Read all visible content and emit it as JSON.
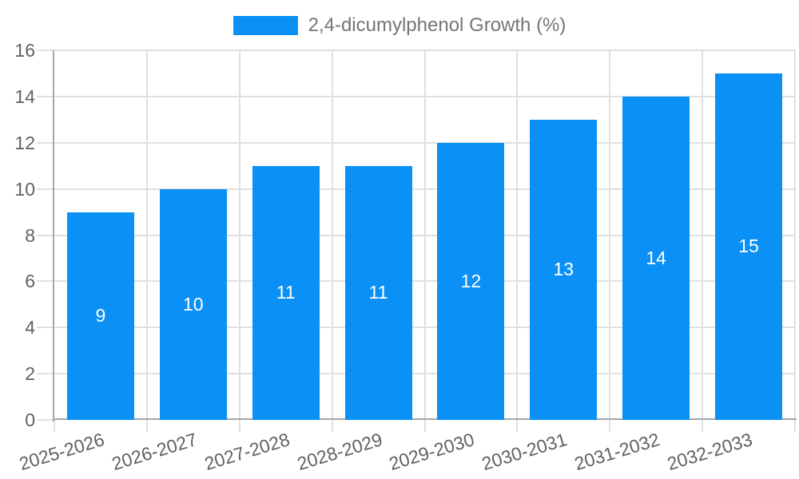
{
  "legend": {
    "label": "2,4-dicumylphenol Growth (%)"
  },
  "chart_data": {
    "type": "bar",
    "title": "",
    "categories": [
      "2025-2026",
      "2026-2027",
      "2027-2028",
      "2028-2029",
      "2029-2030",
      "2030-2031",
      "2031-2032",
      "2032-2033"
    ],
    "series": [
      {
        "name": "2,4-dicumylphenol Growth (%)",
        "values": [
          9,
          10,
          11,
          11,
          12,
          13,
          14,
          15
        ]
      }
    ],
    "bar_value_labels": [
      "9",
      "10",
      "11",
      "11",
      "12",
      "13",
      "14",
      "15"
    ],
    "xlabel": "",
    "ylabel": "",
    "ylim": [
      0,
      16
    ],
    "yticks": [
      0,
      2,
      4,
      6,
      8,
      10,
      12,
      14,
      16
    ],
    "grid": "horizontal and vertical gridlines on",
    "legend_position": "top-center",
    "value_label_position": "inside-center"
  },
  "colors": {
    "bar": "#0b90f5",
    "grid": "#e0e0e0",
    "axis": "#a6a6a6",
    "tick_text": "#616161",
    "legend_text": "#757575",
    "value_label": "#ffffff",
    "background": "#ffffff"
  }
}
